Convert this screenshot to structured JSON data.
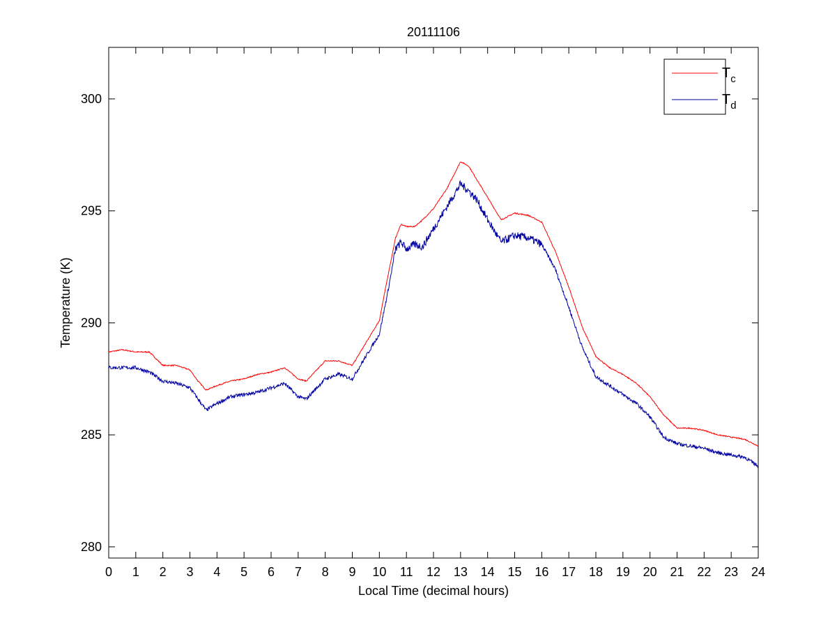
{
  "chart_data": {
    "type": "line",
    "title": "20111106",
    "xlabel": "Local Time (decimal hours)",
    "ylabel": "Temperature (K)",
    "xlim": [
      0,
      24
    ],
    "ylim": [
      279.5,
      302.3
    ],
    "xticks": [
      0,
      1,
      2,
      3,
      4,
      5,
      6,
      7,
      8,
      9,
      10,
      11,
      12,
      13,
      14,
      15,
      16,
      17,
      18,
      19,
      20,
      21,
      22,
      23,
      24
    ],
    "yticks": [
      280,
      285,
      290,
      295,
      300
    ],
    "grid": false,
    "legend_position": "top-right",
    "series": [
      {
        "name": "Tc",
        "name_main": "T",
        "name_sub": "c",
        "color": "#ff0000",
        "x": [
          0,
          0.5,
          1,
          1.5,
          2,
          2.5,
          3,
          3.3,
          3.6,
          4,
          4.5,
          5,
          5.5,
          6,
          6.5,
          7,
          7.3,
          8,
          8.5,
          9,
          9.5,
          10,
          10.3,
          10.6,
          10.8,
          11,
          11.3,
          11.6,
          12,
          12.5,
          13,
          13.3,
          13.6,
          14,
          14.5,
          15,
          15.5,
          16,
          16.5,
          17,
          17.5,
          18,
          18.5,
          19,
          19.5,
          20,
          20.5,
          21,
          21.5,
          22,
          22.5,
          23,
          23.5,
          24
        ],
        "y": [
          288.7,
          288.8,
          288.7,
          288.7,
          288.1,
          288.1,
          287.9,
          287.4,
          287.0,
          287.2,
          287.4,
          287.5,
          287.7,
          287.8,
          288.0,
          287.5,
          287.4,
          288.3,
          288.3,
          288.1,
          289.1,
          290.1,
          292.0,
          293.8,
          294.4,
          294.3,
          294.3,
          294.6,
          295.1,
          296.0,
          297.2,
          297.0,
          296.4,
          295.6,
          294.6,
          294.9,
          294.8,
          294.5,
          293.2,
          291.6,
          289.8,
          288.5,
          288.0,
          287.7,
          287.3,
          286.7,
          285.9,
          285.3,
          285.3,
          285.2,
          285.0,
          284.9,
          284.8,
          284.5
        ]
      },
      {
        "name": "Td",
        "name_main": "T",
        "name_sub": "d",
        "color": "#0000a0",
        "x": [
          0,
          0.5,
          1,
          1.5,
          2,
          2.5,
          3,
          3.3,
          3.6,
          4,
          4.5,
          5,
          5.5,
          6,
          6.5,
          7,
          7.3,
          8,
          8.5,
          9,
          9.5,
          10,
          10.3,
          10.6,
          10.8,
          11,
          11.3,
          11.6,
          12,
          12.5,
          13,
          13.3,
          13.6,
          14,
          14.5,
          15,
          15.5,
          16,
          16.5,
          17,
          17.5,
          18,
          18.5,
          19,
          19.5,
          20,
          20.5,
          21,
          21.5,
          22,
          22.5,
          23,
          23.5,
          24
        ],
        "y": [
          288.0,
          288.0,
          288.0,
          287.8,
          287.4,
          287.3,
          287.1,
          286.6,
          286.1,
          286.4,
          286.7,
          286.8,
          286.9,
          287.1,
          287.3,
          286.7,
          286.6,
          287.5,
          287.7,
          287.5,
          288.5,
          289.5,
          291.3,
          293.3,
          293.6,
          293.3,
          293.5,
          293.4,
          294.2,
          295.2,
          296.2,
          295.9,
          295.5,
          294.6,
          293.6,
          293.9,
          293.8,
          293.5,
          292.4,
          290.7,
          288.9,
          287.6,
          287.2,
          286.8,
          286.4,
          285.8,
          284.9,
          284.6,
          284.5,
          284.4,
          284.2,
          284.1,
          284.0,
          283.6
        ]
      }
    ]
  }
}
